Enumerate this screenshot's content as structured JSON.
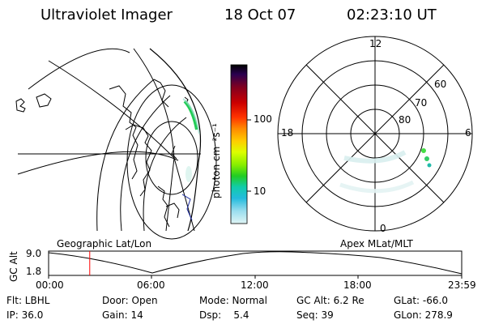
{
  "header": {
    "title": "Ultraviolet Imager",
    "date": "18 Oct 07",
    "time": "02:23:10 UT"
  },
  "colorbar": {
    "unit_label": "photon cm⁻²s⁻¹",
    "ticks": [
      "100",
      "10"
    ],
    "colors": [
      "#000000",
      "#2a0050",
      "#800020",
      "#cc0000",
      "#ff3300",
      "#ff8800",
      "#ffcc00",
      "#ddff00",
      "#88ee00",
      "#22cc22",
      "#11ccaa",
      "#22bbdd",
      "#99ddee",
      "#dff5f5"
    ]
  },
  "panels": {
    "geographic_label": "Geographic Lat/Lon",
    "apex_label": "Apex MLat/MLT"
  },
  "polar": {
    "mlt_top": "12",
    "mlt_left": "18",
    "mlt_right": "6",
    "mlt_bottom": "0",
    "lat_labels": [
      "60",
      "70",
      "80"
    ]
  },
  "altitude_plot": {
    "axis_label": "GC Alt",
    "y_ticks": [
      "9.0",
      "1.8"
    ],
    "x_ticks": [
      "00:00",
      "06:00",
      "12:00",
      "18:00",
      "23:59"
    ],
    "current_time_marker_hours": 2.39,
    "marker_color": "#ff0000"
  },
  "info": {
    "filter": "Flt: LBHL",
    "ip": "IP: 36.0",
    "door": "Door: Open",
    "gain": "Gain: 14",
    "mode": "Mode: Normal",
    "dsp": "Dsp:    5.4",
    "gc_alt": "GC Alt: 6.2 Re",
    "seq": "Seq: 39",
    "glat": "GLat: -66.0",
    "glon": "GLon: 278.9"
  }
}
